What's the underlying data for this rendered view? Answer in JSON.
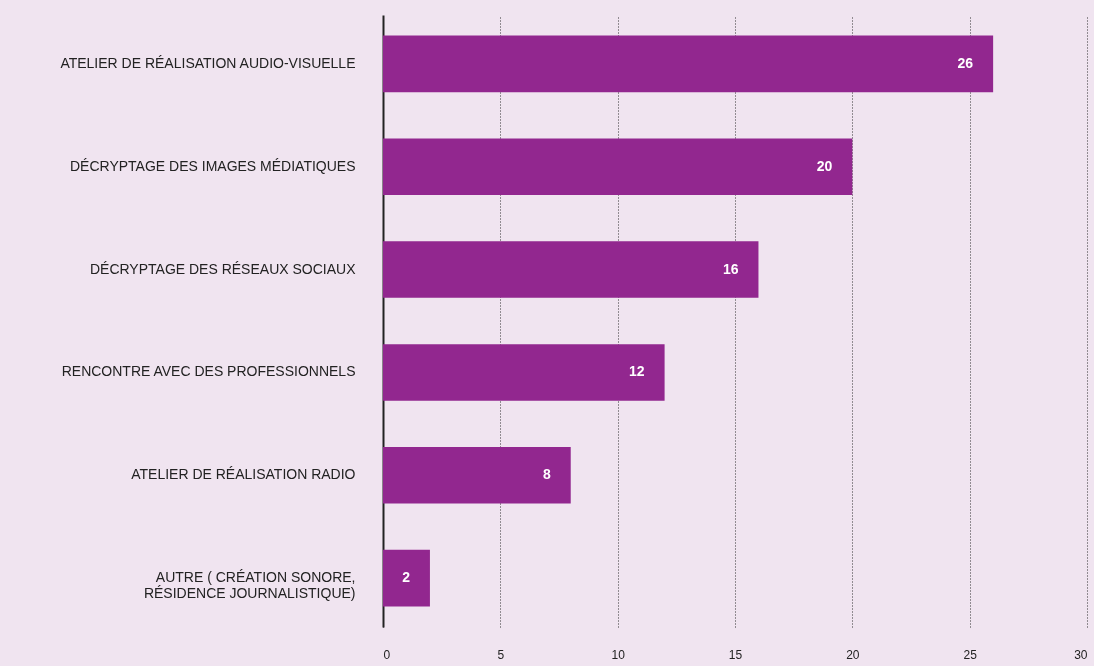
{
  "chart_data": {
    "type": "bar",
    "orientation": "horizontal",
    "categories": [
      "ATELIER DE RÉALISATION AUDIO-VISUELLE",
      "DÉCRYPTAGE DES IMAGES MÉDIATIQUES",
      "DÉCRYPTAGE DES RÉSEAUX SOCIAUX",
      "RENCONTRE AVEC DES PROFESSIONNELS",
      "ATELIER DE RÉALISATION RADIO",
      "AUTRE ( CRÉATION SONORE,\nRÉSIDENCE JOURNALISTIQUE)"
    ],
    "values": [
      26,
      20,
      16,
      12,
      8,
      2
    ],
    "color": "#92278f",
    "xlim": [
      0,
      30
    ],
    "xticks": [
      0,
      5,
      10,
      15,
      20,
      25,
      30
    ],
    "grid": "x",
    "data_labels": true
  }
}
